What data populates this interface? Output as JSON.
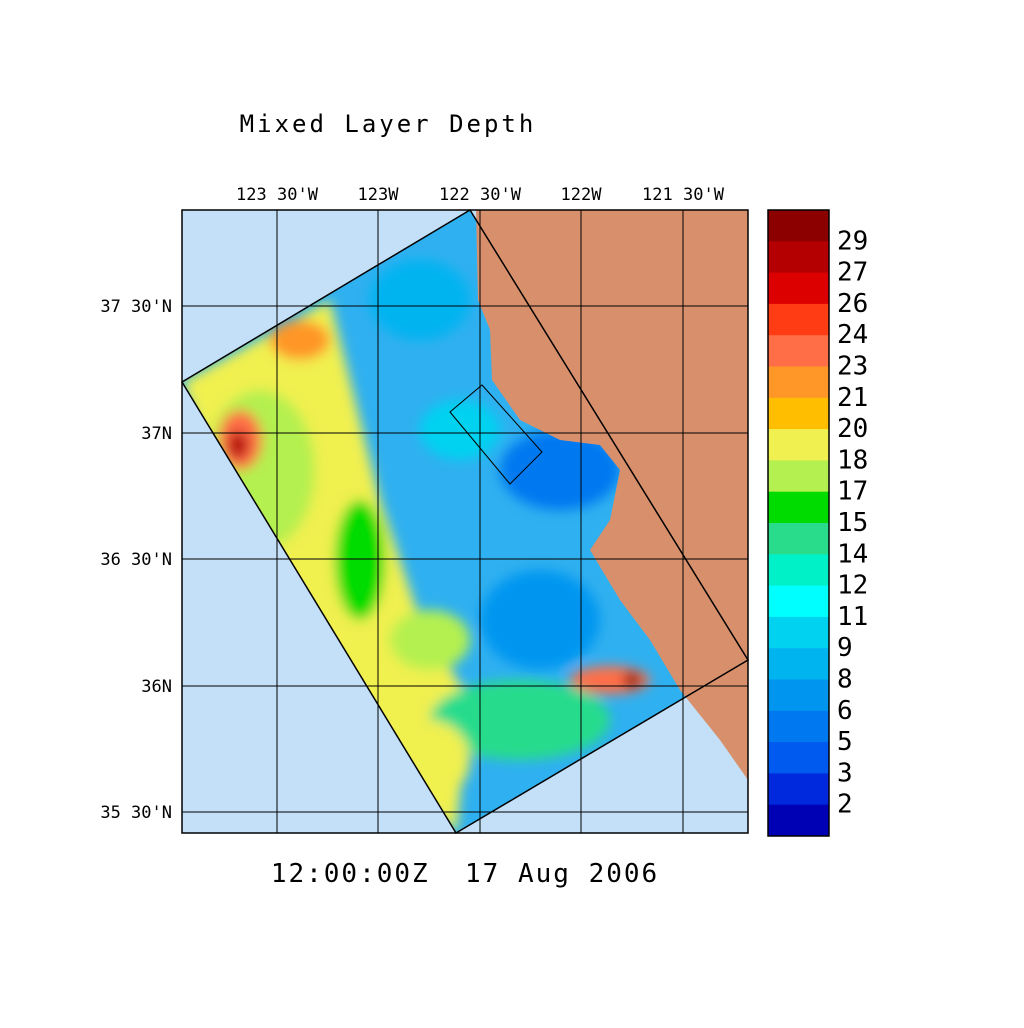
{
  "title": "Mixed Layer Depth",
  "lon_labels": [
    "123 30'W",
    "123W",
    "122 30'W",
    "122W",
    "121 30'W"
  ],
  "lat_labels": [
    "37 30'N",
    "37N",
    "36 30'N",
    "36N",
    "35 30'N"
  ],
  "timestamp": "12:00:00Z  17 Aug 2006",
  "colorbar": {
    "labels": [
      "29",
      "27",
      "26",
      "24",
      "23",
      "21",
      "20",
      "18",
      "17",
      "15",
      "14",
      "12",
      "11",
      "9",
      "8",
      "6",
      "5",
      "3",
      "2"
    ],
    "colors": [
      "#8c0000",
      "#b40000",
      "#dc0000",
      "#ff3c14",
      "#ff6e46",
      "#ff9628",
      "#ffbe00",
      "#f0f050",
      "#b4f050",
      "#00dc00",
      "#28dc8c",
      "#00f0c8",
      "#00ffff",
      "#00d2f0",
      "#00b4f0",
      "#0096f0",
      "#0078f0",
      "#005af0",
      "#0028dc",
      "#0000b4"
    ]
  }
}
